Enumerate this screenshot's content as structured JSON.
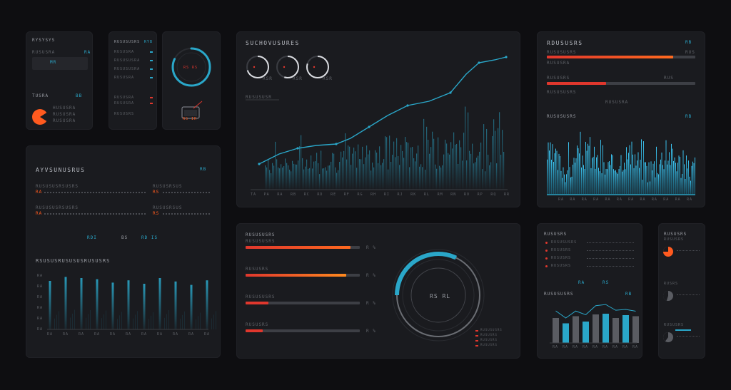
{
  "colors": {
    "accent": "#2aa7c9",
    "orange": "#ff5a1f",
    "red": "#e0372d",
    "bar_track": "#3d3f45",
    "panel": "#1a1b1f"
  },
  "p1": {
    "title": "RYSYSYS",
    "row_label": "RUSUSRA",
    "row_value": "RA",
    "chip": "MR",
    "bottom_label": "TUSRA",
    "bottom_value": "BB",
    "legend": [
      "HUSUSRA",
      "RUSUSRA",
      "RUSUSRA"
    ]
  },
  "p2": {
    "title": "RUSUSUSRS",
    "badge": "RYB",
    "rows": [
      "RUSUSRA",
      "RUSUSUSRA",
      "RUSUSUSRA",
      "RUSUSRA",
      "RUSUSRA",
      "RUSUSRA"
    ],
    "footer": "RUSUSRS"
  },
  "p3": {
    "ring_label": "RS RS",
    "icon_label": "RS IR",
    "ring_value": 0.82
  },
  "main_chart": {
    "title": "SUCHOVUSURES",
    "label": "RUSUSUSR",
    "gauges": [
      {
        "label": "RSR",
        "value": 0.7
      },
      {
        "label": "RSR",
        "value": 0.55
      },
      {
        "label": "RSR",
        "value": 0.8
      }
    ],
    "ticks": [
      "TA",
      "PA",
      "RA",
      "RB",
      "RC",
      "RD",
      "RE",
      "RF",
      "RG",
      "RH",
      "RI",
      "RJ",
      "RK",
      "RL",
      "RM",
      "RN",
      "RO",
      "RP",
      "RQ",
      "RR"
    ]
  },
  "right_top": {
    "title": "RDUSUSRS",
    "badge": "RB",
    "bars": [
      {
        "label": "RUSUSUSRS",
        "sub": "RUSUSRA",
        "value": 0.85,
        "side": "RUS"
      },
      {
        "label": "RUSUSRS",
        "sub": "RUSUSUSRS",
        "value": 0.4,
        "side": "RUS"
      }
    ],
    "caption": "RUSUSRA",
    "wave_title": "RUSUSUSRS",
    "wave_badge": "RB",
    "wave_ticks": [
      "RA",
      "RA",
      "RA",
      "RA",
      "RA",
      "RA",
      "RA",
      "RA",
      "RA",
      "RA",
      "RA",
      "RA"
    ]
  },
  "left_mid": {
    "title": "AYVSUNUSRUS",
    "badge": "RB",
    "rows": [
      {
        "mark": "RA",
        "label": "RUSUSUSRSUSRS",
        "mark2": "RS",
        "label2": "RUSUSRSUS"
      },
      {
        "mark": "RA",
        "label": "RUSUSUSRSUSRS",
        "mark2": "RS",
        "label2": "RUSUSRSUS"
      }
    ],
    "chips": [
      "RDI",
      "BS",
      "RD IS"
    ],
    "sub_title": "RSUSUSRUSUSUSRUSUSRS",
    "y_ticks": [
      "RA",
      "RA",
      "RA",
      "RA",
      "RA",
      "RA"
    ],
    "values": [
      0.85,
      0.92,
      0.9,
      0.88,
      0.82,
      0.86,
      0.8,
      0.9,
      0.84,
      0.78,
      0.86
    ],
    "x_ticks": [
      "RA",
      "RA",
      "RA",
      "RA",
      "RA",
      "RA",
      "RA",
      "RA",
      "RA",
      "RA",
      "RA"
    ]
  },
  "bottom_mid": {
    "title": "RUSUSUSRS",
    "bars": [
      {
        "label": "RUSUSUSRS",
        "value": 0.92,
        "pct": "R %"
      },
      {
        "label": "RUSUSRS",
        "value": 0.88,
        "pct": "R %"
      },
      {
        "label": "RUSUSUSRS",
        "value": 0.2,
        "pct": "R %"
      },
      {
        "label": "RUSUSRS",
        "value": 0.15,
        "pct": "R %"
      }
    ],
    "ring_center": "RS RL",
    "ring_value": 0.32,
    "legend": [
      "RUSUSUSRS",
      "RUSUSRS",
      "RUSUSRS",
      "RUSUSRS"
    ]
  },
  "bottom_right": {
    "title": "RUSUSRS",
    "legend": [
      "RUSUSUSRS",
      "RUSUSRS",
      "RUSUSRS",
      "RUSUSRS"
    ],
    "chips": [
      "RA",
      "RS"
    ],
    "chart_title": "RUSUSUSRS",
    "chart_badge": "RB",
    "values": [
      0.7,
      0.55,
      0.75,
      0.6,
      0.8,
      0.82,
      0.7,
      0.78,
      0.75
    ],
    "x_ticks": [
      "RA",
      "RA",
      "RA",
      "RA",
      "RA",
      "RA",
      "RA",
      "RA",
      "RA"
    ]
  },
  "far_right": {
    "title": "RUSUSRS",
    "items": [
      {
        "label": "RUSUSRS",
        "value": 0.75
      },
      {
        "label": "RUSRS",
        "value": 0.55
      },
      {
        "label": "RUSUSRS",
        "value": 0.6
      }
    ]
  }
}
